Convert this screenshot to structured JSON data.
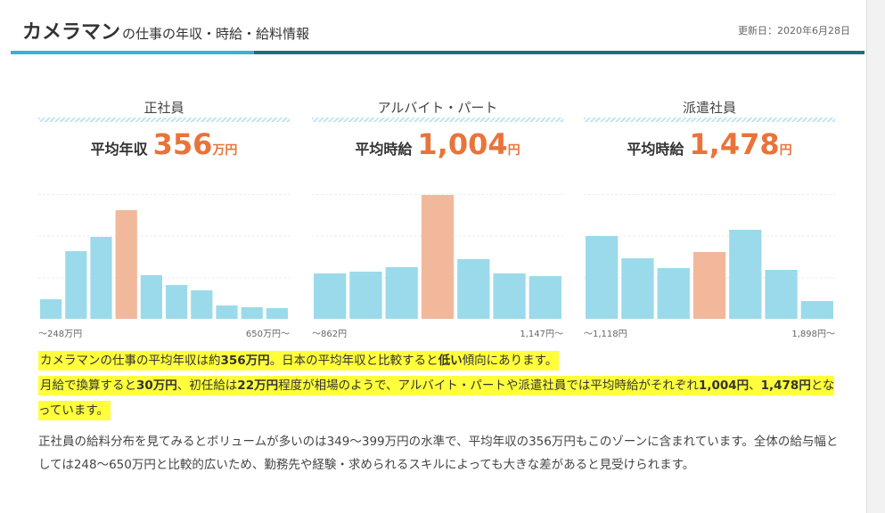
{
  "header": {
    "title": "カメラマン",
    "subtitle": "の仕事の年収・時給・給料情報",
    "updated": "更新日：2020年6月28日"
  },
  "panels": [
    {
      "title": "正社員",
      "label": "平均年収",
      "value": "356",
      "unit": "万円",
      "bars": [
        22,
        76,
        92,
        122,
        49,
        38,
        32,
        15,
        13,
        12
      ],
      "ylim": [
        0,
        140
      ],
      "highlight_index": 3,
      "min_label": "～248万円",
      "max_label": "650万円～"
    },
    {
      "title": "アルバイト・パート",
      "label": "平均時給",
      "value": "1,004",
      "unit": "円",
      "bars": [
        51,
        53,
        58,
        139,
        67,
        51,
        48
      ],
      "ylim": [
        0,
        140
      ],
      "highlight_index": 3,
      "min_label": "～862円",
      "max_label": "1,147円～"
    },
    {
      "title": "派遣社員",
      "label": "平均時給",
      "value": "1,478",
      "unit": "円",
      "bars": [
        93,
        68,
        57,
        75,
        100,
        55,
        20
      ],
      "ylim": [
        0,
        140
      ],
      "highlight_index": 3,
      "min_label": "～1,118円",
      "max_label": "1,898円～"
    }
  ],
  "bar_color": "#9bdaea",
  "highlight_color": "#f1b89b",
  "summary": [
    [
      {
        "text": "カメラマンの仕事の平均年収は約"
      },
      {
        "text": "356万円",
        "bold": true
      },
      {
        "text": "。日本の平均年収と比較すると"
      },
      {
        "text": "低い",
        "bold": true
      },
      {
        "text": "傾向にあります。"
      }
    ],
    [
      {
        "text": "月給で換算すると"
      },
      {
        "text": "30万円",
        "bold": true
      },
      {
        "text": "、初任給は"
      },
      {
        "text": "22万円",
        "bold": true
      },
      {
        "text": "程度が相場のようで、アルバイト・パートや派遣社員では平均時給がそれぞれ"
      },
      {
        "text": "1,004円",
        "bold": true
      },
      {
        "text": "、"
      },
      {
        "text": "1,478円",
        "bold": true
      },
      {
        "text": "となっています。"
      }
    ]
  ],
  "detail": "正社員の給料分布を見てみるとボリュームが多いのは349～399万円の水準で、平均年収の356万円もこのゾーンに含まれています。全体の給与幅としては248～650万円と比較的広いため、勤務先や経験・求められるスキルによっても大きな差があると見受けられます。"
}
